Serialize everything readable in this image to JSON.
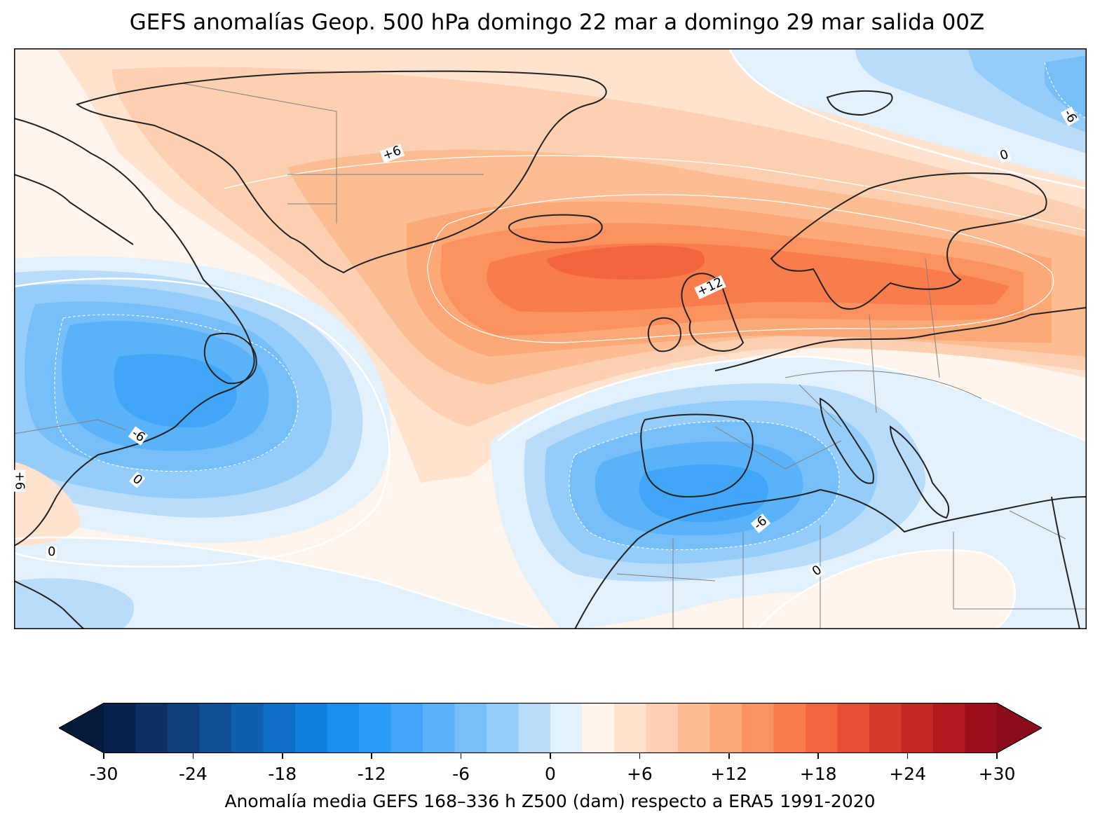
{
  "title": "GEFS anomalías Geop. 500 hPa domingo 22 mar a domingo 29 mar salida 00Z",
  "colorbar": {
    "label": "Anomalía media GEFS 168–336 h Z500 (dam) respecto a ERA5 1991-2020",
    "min": -30,
    "max": 30,
    "step": 2,
    "extend": "both",
    "ticks": [
      "-30",
      "-24",
      "-18",
      "-12",
      "-6",
      "0",
      "+6",
      "+12",
      "+18",
      "+24",
      "+30"
    ],
    "colors": [
      "#08214a",
      "#0b3064",
      "#0d3f7c",
      "#0e4f95",
      "#0e5fae",
      "#0f6fc7",
      "#137fdc",
      "#1c8eed",
      "#2c9bf5",
      "#41a6f8",
      "#5ab2f9",
      "#76bff9",
      "#94cdf9",
      "#b8dcf9",
      "#e3f1fd",
      "#fff5ec",
      "#ffe3cf",
      "#fdd0b1",
      "#fdbd93",
      "#fca877",
      "#fb925f",
      "#f97c4d",
      "#f3653e",
      "#e64f33",
      "#d63a2b",
      "#c52824",
      "#b21a20",
      "#9b0f1d"
    ],
    "under_color": "#041a3b",
    "over_color": "#8a0b1a"
  },
  "contour_labels": [
    "+6",
    "+12",
    "-6",
    "0",
    "-6",
    "0",
    "-6",
    "0",
    "0",
    "-6",
    "+6"
  ],
  "map": {
    "projection": "PlateCarree",
    "lon_range": [
      -70,
      45
    ],
    "lat_range": [
      25,
      85
    ],
    "coastline_color": "#222222",
    "border_color": "#808080"
  }
}
